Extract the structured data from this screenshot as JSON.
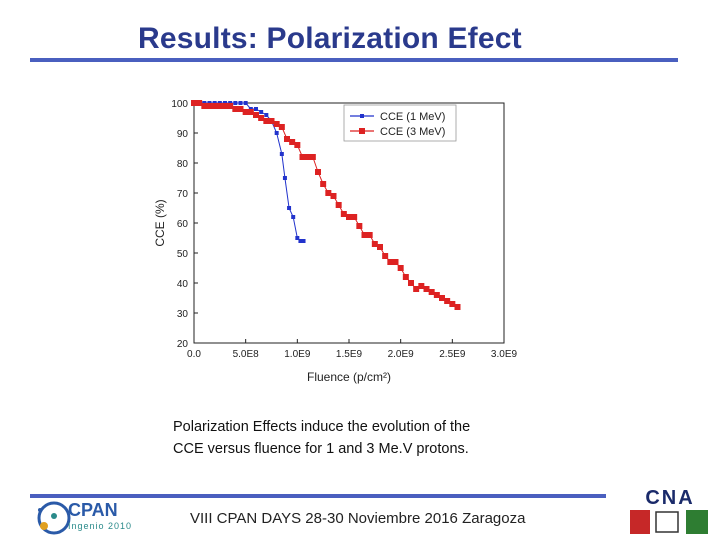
{
  "slide": {
    "title": "Results: Polarization Efect",
    "caption_line1": "Polarization Effects induce the evolution of the",
    "caption_line2": "CCE versus fluence for 1 and 3 Me.V protons.",
    "footer": "VIII CPAN DAYS 28-30 Noviembre 2016 Zaragoza",
    "logo_left_name": "CPAN",
    "logo_left_sub": "Ingenio 2010",
    "logo_right_name": "CNA",
    "accent_color": "#2a3a8c",
    "rule_color": "#4a5fbf"
  },
  "chart_data": {
    "type": "scatter",
    "title": "",
    "xlabel": "Fluence (p/cm²)",
    "ylabel": "CCE (%)",
    "xlim": [
      0,
      3000000000.0
    ],
    "ylim": [
      20,
      100
    ],
    "x_ticks": [
      0,
      500000000.0,
      1000000000.0,
      1500000000.0,
      2000000000.0,
      2500000000.0,
      3000000000.0
    ],
    "x_tick_labels": [
      "0.0",
      "5.0E8",
      "1.0E9",
      "1.5E9",
      "2.0E9",
      "2.5E9",
      "3.0E9"
    ],
    "y_ticks": [
      20,
      30,
      40,
      50,
      60,
      70,
      80,
      90,
      100
    ],
    "y_tick_labels": [
      "20",
      "30",
      "40",
      "50",
      "60",
      "70",
      "80",
      "90",
      "100"
    ],
    "legend_position": "top-right",
    "series": [
      {
        "name": "CCE (1 MeV)",
        "color": "#2233cc",
        "x": [
          0.0,
          50000000.0,
          100000000.0,
          150000000.0,
          200000000.0,
          250000000.0,
          300000000.0,
          350000000.0,
          400000000.0,
          450000000.0,
          500000000.0,
          550000000.0,
          600000000.0,
          650000000.0,
          700000000.0,
          750000000.0,
          800000000.0,
          850000000.0,
          880000000.0,
          920000000.0,
          960000000.0,
          1000000000.0,
          1030000000.0,
          1060000000.0
        ],
        "y": [
          100,
          100,
          100,
          100,
          100,
          100,
          100,
          100,
          100,
          100,
          100,
          98,
          98,
          97,
          96,
          94,
          90,
          83,
          75,
          65,
          62,
          55,
          54,
          54
        ]
      },
      {
        "name": "CCE (3 MeV)",
        "color": "#dd2222",
        "x": [
          0.0,
          50000000.0,
          100000000.0,
          150000000.0,
          200000000.0,
          250000000.0,
          300000000.0,
          350000000.0,
          400000000.0,
          450000000.0,
          500000000.0,
          550000000.0,
          600000000.0,
          650000000.0,
          700000000.0,
          750000000.0,
          800000000.0,
          850000000.0,
          900000000.0,
          950000000.0,
          1000000000.0,
          1050000000.0,
          1100000000.0,
          1150000000.0,
          1200000000.0,
          1250000000.0,
          1300000000.0,
          1350000000.0,
          1400000000.0,
          1450000000.0,
          1500000000.0,
          1550000000.0,
          1600000000.0,
          1650000000.0,
          1700000000.0,
          1750000000.0,
          1800000000.0,
          1850000000.0,
          1900000000.0,
          1950000000.0,
          2000000000.0,
          2050000000.0,
          2100000000.0,
          2150000000.0,
          2200000000.0,
          2250000000.0,
          2300000000.0,
          2350000000.0,
          2400000000.0,
          2450000000.0,
          2500000000.0,
          2550000000.0
        ],
        "y": [
          100,
          100,
          99,
          99,
          99,
          99,
          99,
          99,
          98,
          98,
          97,
          97,
          96,
          95,
          94,
          94,
          93,
          92,
          88,
          87,
          86,
          82,
          82,
          82,
          77,
          73,
          70,
          69,
          66,
          63,
          62,
          62,
          59,
          56,
          56,
          53,
          52,
          49,
          47,
          47,
          45,
          42,
          40,
          38,
          39,
          38,
          37,
          36,
          35,
          34,
          33,
          32
        ]
      }
    ]
  }
}
